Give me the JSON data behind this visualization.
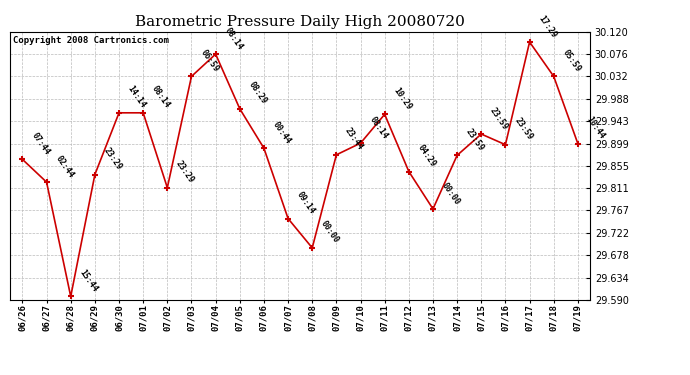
{
  "title": "Barometric Pressure Daily High 20080720",
  "copyright": "Copyright 2008 Cartronics.com",
  "x_labels": [
    "06/26",
    "06/27",
    "06/28",
    "06/29",
    "06/30",
    "07/01",
    "07/02",
    "07/03",
    "07/04",
    "07/05",
    "07/06",
    "07/07",
    "07/08",
    "07/09",
    "07/10",
    "07/11",
    "07/12",
    "07/13",
    "07/14",
    "07/15",
    "07/16",
    "07/17",
    "07/18",
    "07/19"
  ],
  "y_values": [
    29.868,
    29.823,
    29.597,
    29.838,
    29.96,
    29.96,
    29.812,
    30.032,
    30.076,
    29.968,
    29.89,
    29.751,
    29.693,
    29.877,
    29.9,
    29.957,
    29.844,
    29.77,
    29.876,
    29.918,
    29.897,
    30.1,
    30.032,
    29.899
  ],
  "annotations": [
    "07:44",
    "02:44",
    "15:44",
    "23:29",
    "14:14",
    "08:14",
    "23:29",
    "06:59",
    "08:14",
    "08:29",
    "00:44",
    "09:14",
    "00:00",
    "23:44",
    "08:14",
    "10:29",
    "04:29",
    "00:00",
    "23:59",
    "23:59",
    "23:59",
    "17:29",
    "05:59",
    "10:44"
  ],
  "ylim_min": 29.59,
  "ylim_max": 30.12,
  "yticks": [
    29.59,
    29.634,
    29.678,
    29.722,
    29.767,
    29.811,
    29.855,
    29.899,
    29.943,
    29.988,
    30.032,
    30.076,
    30.12
  ],
  "line_color": "#cc0000",
  "marker_color": "#cc0000",
  "bg_color": "#ffffff",
  "grid_color": "#bbbbbb",
  "title_fontsize": 11,
  "ann_fontsize": 6.0,
  "copyright_fontsize": 6.5
}
